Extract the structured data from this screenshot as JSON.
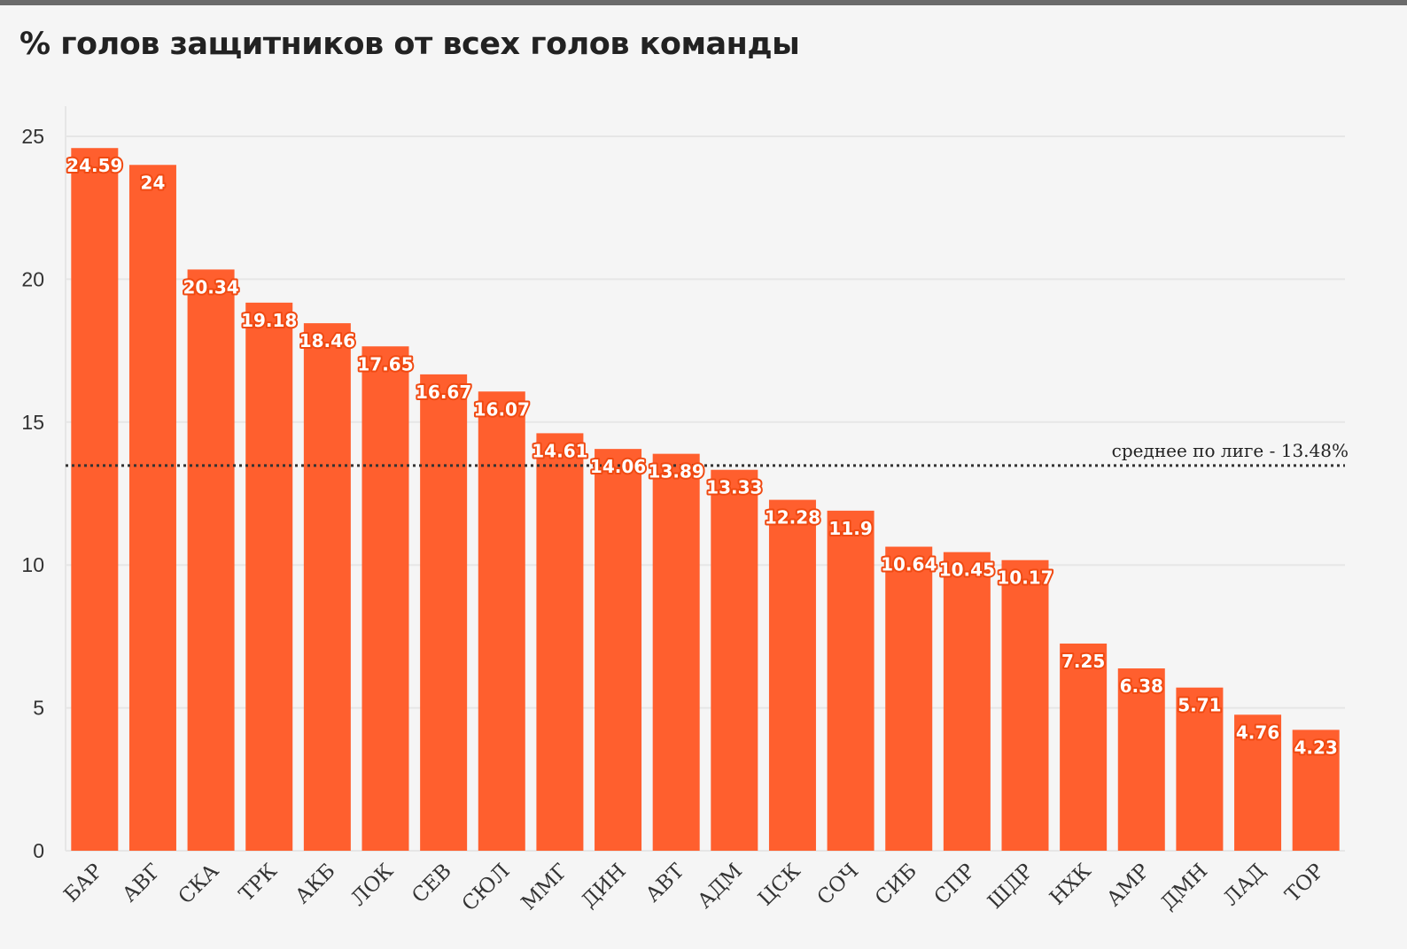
{
  "chart_data": {
    "type": "bar",
    "title": "% голов защитников от всех голов команды",
    "categories": [
      "БАР",
      "АВГ",
      "СКА",
      "ТРК",
      "АКБ",
      "ЛОК",
      "СЕВ",
      "СЮЛ",
      "ММГ",
      "ДИН",
      "АВТ",
      "АДМ",
      "ЦСК",
      "СОЧ",
      "СИБ",
      "СПР",
      "ШДР",
      "НХК",
      "АМР",
      "ДМН",
      "ЛАД",
      "ТОР"
    ],
    "values": [
      24.59,
      24,
      20.34,
      19.18,
      18.46,
      17.65,
      16.67,
      16.07,
      14.61,
      14.06,
      13.89,
      13.33,
      12.28,
      11.9,
      10.64,
      10.45,
      10.17,
      7.25,
      6.38,
      5.71,
      4.76,
      4.23
    ],
    "value_labels": [
      "24.59",
      "24",
      "20.34",
      "19.18",
      "18.46",
      "17.65",
      "16.67",
      "16.07",
      "14.61",
      "14.06",
      "13.89",
      "13.33",
      "12.28",
      "11.9",
      "10.64",
      "10.45",
      "10.17",
      "7.25",
      "6.38",
      "5.71",
      "4.76",
      "4.23"
    ],
    "y_ticks": [
      0,
      5,
      10,
      15,
      20,
      25
    ],
    "y_tick_labels": [
      "0",
      "5",
      "10",
      "15",
      "20",
      "25"
    ],
    "ylim": [
      0,
      26
    ],
    "xlabel": "",
    "ylabel": "",
    "grid": true,
    "bar_color": "#ff5f2e",
    "reference_line": {
      "value": 13.48,
      "label": "среднее по лиге - 13.48%",
      "style": "dotted",
      "color": "#333333"
    }
  }
}
